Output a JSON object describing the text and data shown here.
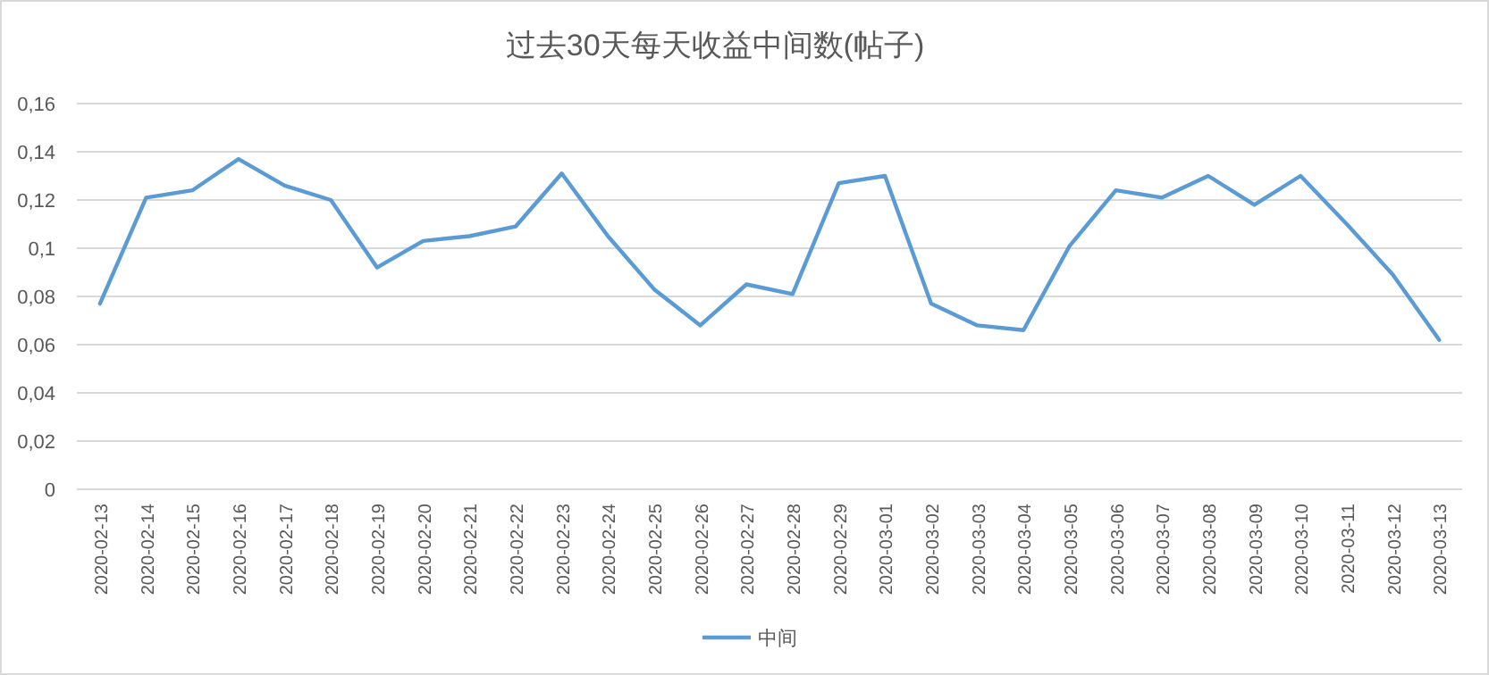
{
  "chart_data": {
    "type": "line",
    "title": "过去30天每天收益中间数(帖子)",
    "categories": [
      "2020-02-13",
      "2020-02-14",
      "2020-02-15",
      "2020-02-16",
      "2020-02-17",
      "2020-02-18",
      "2020-02-19",
      "2020-02-20",
      "2020-02-21",
      "2020-02-22",
      "2020-02-23",
      "2020-02-24",
      "2020-02-25",
      "2020-02-26",
      "2020-02-27",
      "2020-02-28",
      "2020-02-29",
      "2020-03-01",
      "2020-03-02",
      "2020-03-03",
      "2020-03-04",
      "2020-03-05",
      "2020-03-06",
      "2020-03-07",
      "2020-03-08",
      "2020-03-09",
      "2020-03-10",
      "2020-03-11",
      "2020-03-12",
      "2020-03-13"
    ],
    "series": [
      {
        "name": "中间",
        "color": "#5b9bd5",
        "values": [
          0.077,
          0.121,
          0.124,
          0.137,
          0.126,
          0.12,
          0.092,
          0.103,
          0.105,
          0.109,
          0.131,
          0.105,
          0.083,
          0.068,
          0.085,
          0.081,
          0.127,
          0.13,
          0.077,
          0.068,
          0.066,
          0.101,
          0.124,
          0.121,
          0.13,
          0.118,
          0.13,
          0.11,
          0.089,
          0.062
        ]
      }
    ],
    "ylim": [
      0,
      0.16
    ],
    "yticks": [
      {
        "value": 0,
        "label": "0"
      },
      {
        "value": 0.02,
        "label": "0,02"
      },
      {
        "value": 0.04,
        "label": "0,04"
      },
      {
        "value": 0.06,
        "label": "0,06"
      },
      {
        "value": 0.08,
        "label": "0,08"
      },
      {
        "value": 0.1,
        "label": "0,1"
      },
      {
        "value": 0.12,
        "label": "0,12"
      },
      {
        "value": 0.14,
        "label": "0,14"
      },
      {
        "value": 0.16,
        "label": "0,16"
      }
    ],
    "grid": "y",
    "legend": "bottom",
    "marker": "none",
    "line_style": "solid"
  }
}
